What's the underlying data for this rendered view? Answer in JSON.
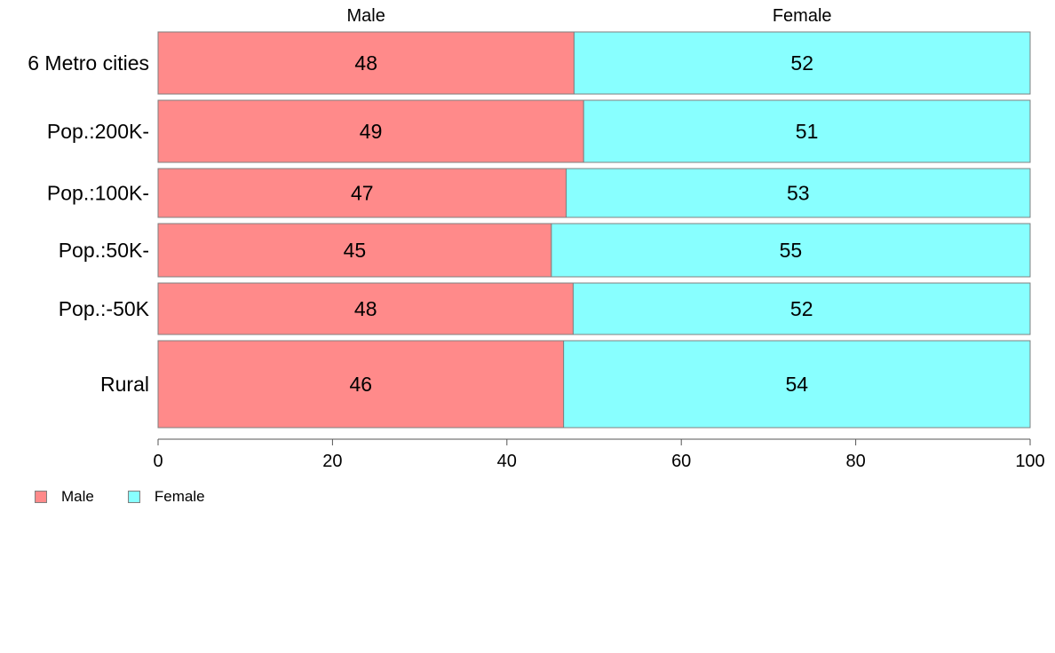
{
  "chart_data": {
    "type": "bar",
    "orientation": "horizontal",
    "stacked": true,
    "percent": true,
    "categories": [
      "6 Metro cities",
      "Pop.:200K-",
      "Pop.:100K-",
      "Pop.:50K-",
      "Pop.:-50K",
      "Rural"
    ],
    "series": [
      {
        "name": "Male",
        "color": "#ff8a8a",
        "values": [
          47.7,
          48.8,
          46.8,
          45.1,
          47.6,
          46.5
        ],
        "labels": [
          "48",
          "49",
          "47",
          "45",
          "48",
          "46"
        ]
      },
      {
        "name": "Female",
        "color": "#88ffff",
        "values": [
          52.3,
          51.2,
          53.2,
          54.9,
          52.4,
          53.5
        ],
        "labels": [
          "52",
          "51",
          "53",
          "55",
          "52",
          "54"
        ]
      }
    ],
    "column_headers": [
      "Male",
      "Female"
    ],
    "xlim": [
      0,
      100
    ],
    "xticks": [
      0,
      20,
      40,
      60,
      80,
      100
    ],
    "row_weights": [
      70,
      70,
      55,
      60,
      58,
      98
    ],
    "legend": "bottom-left",
    "grid": false
  }
}
